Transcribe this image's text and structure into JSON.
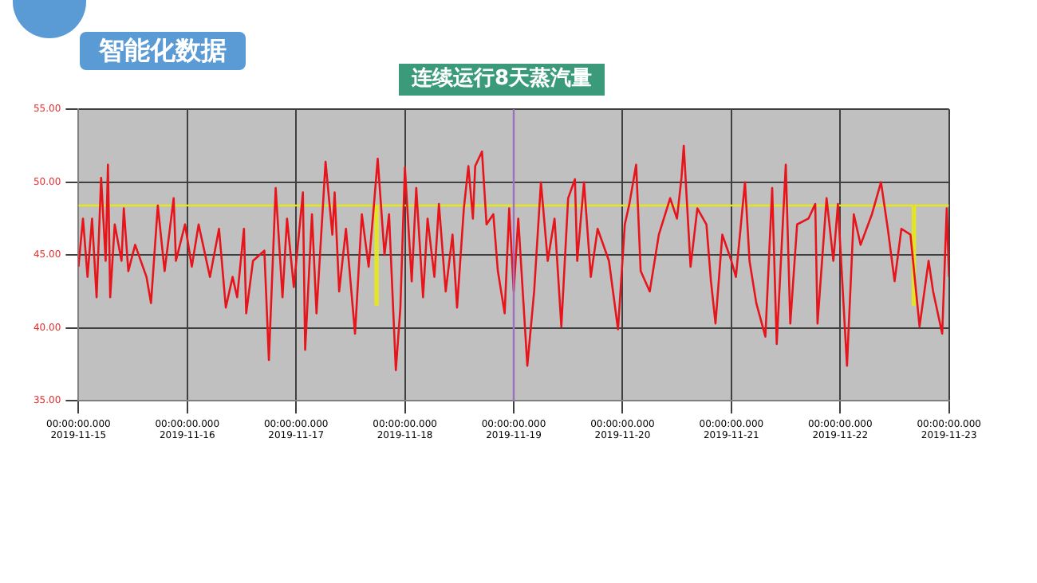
{
  "chart_data": {
    "type": "line",
    "title": "智能化数据",
    "subtitle": "连续运行8天蒸汽量",
    "series": [
      {
        "color": "#e8141b",
        "x": [
          "2019-11-15T00:00",
          "2019-11-15T01:00",
          "2019-11-15T02:00",
          "2019-11-15T03:00",
          "2019-11-15T04:00",
          "2019-11-15T05:00",
          "2019-11-15T06:00",
          "2019-11-15T06:30",
          "2019-11-15T07:00",
          "2019-11-15T08:00",
          "2019-11-15T09:30",
          "2019-11-15T10:00",
          "2019-11-15T11:00",
          "2019-11-15T12:30",
          "2019-11-15T15:00",
          "2019-11-15T16:00",
          "2019-11-15T17:30",
          "2019-11-15T19:00",
          "2019-11-15T21:00",
          "2019-11-15T21:30",
          "2019-11-15T23:30",
          "2019-11-16T01:00",
          "2019-11-16T02:30",
          "2019-11-16T05:00",
          "2019-11-16T07:00",
          "2019-11-16T08:30",
          "2019-11-16T10:00",
          "2019-11-16T11:00",
          "2019-11-16T12:30",
          "2019-11-16T13:00",
          "2019-11-16T14:30",
          "2019-11-16T17:00",
          "2019-11-16T18:00",
          "2019-11-16T19:30",
          "2019-11-16T21:00",
          "2019-11-16T22:00",
          "2019-11-16T23:30",
          "2019-11-17T01:30",
          "2019-11-17T02:00",
          "2019-11-17T03:30",
          "2019-11-17T04:30",
          "2019-11-17T06:30",
          "2019-11-17T08:00",
          "2019-11-17T08:30",
          "2019-11-17T09:30",
          "2019-11-17T11:00",
          "2019-11-17T13:00",
          "2019-11-17T14:30",
          "2019-11-17T16:00",
          "2019-11-17T17:00",
          "2019-11-17T18:00",
          "2019-11-17T19:30",
          "2019-11-17T20:30",
          "2019-11-17T22:00",
          "2019-11-17T23:00",
          "2019-11-18T00:00",
          "2019-11-18T01:30",
          "2019-11-18T02:30",
          "2019-11-18T04:00",
          "2019-11-18T05:00",
          "2019-11-18T06:30",
          "2019-11-18T07:30",
          "2019-11-18T09:00",
          "2019-11-18T10:30",
          "2019-11-18T11:30",
          "2019-11-18T13:00",
          "2019-11-18T14:00",
          "2019-11-18T15:00",
          "2019-11-18T15:30",
          "2019-11-18T17:00",
          "2019-11-18T18:00",
          "2019-11-18T19:30",
          "2019-11-18T20:30",
          "2019-11-18T22:00",
          "2019-11-18T23:00",
          "2019-11-19T00:00",
          "2019-11-19T01:00",
          "2019-11-19T03:00",
          "2019-11-19T04:30",
          "2019-11-19T06:00",
          "2019-11-19T07:30",
          "2019-11-19T09:00",
          "2019-11-19T10:30",
          "2019-11-19T12:00",
          "2019-11-19T13:30",
          "2019-11-19T14:00",
          "2019-11-19T15:30",
          "2019-11-19T17:00",
          "2019-11-19T18:30",
          "2019-11-19T21:00",
          "2019-11-19T23:00",
          "2019-11-20T00:30",
          "2019-11-20T01:30",
          "2019-11-20T03:00",
          "2019-11-20T04:00",
          "2019-11-20T06:00",
          "2019-11-20T08:00",
          "2019-11-20T10:30",
          "2019-11-20T12:00",
          "2019-11-20T13:00",
          "2019-11-20T13:30",
          "2019-11-20T15:00",
          "2019-11-20T16:30",
          "2019-11-20T18:30",
          "2019-11-20T19:30",
          "2019-11-20T20:30",
          "2019-11-20T22:00",
          "2019-11-21T00:00",
          "2019-11-21T01:00",
          "2019-11-21T03:00",
          "2019-11-21T04:00",
          "2019-11-21T05:30",
          "2019-11-21T07:30",
          "2019-11-21T09:00",
          "2019-11-21T10:00",
          "2019-11-21T12:00",
          "2019-11-21T13:00",
          "2019-11-21T14:30",
          "2019-11-21T17:00",
          "2019-11-21T18:30",
          "2019-11-21T19:00",
          "2019-11-21T21:00",
          "2019-11-21T22:30",
          "2019-11-21T23:30",
          "2019-11-22T01:30",
          "2019-11-22T03:00",
          "2019-11-22T04:30",
          "2019-11-22T07:00",
          "2019-11-22T09:00",
          "2019-11-22T10:30",
          "2019-11-22T12:00",
          "2019-11-22T13:30",
          "2019-11-22T15:30",
          "2019-11-22T17:30",
          "2019-11-22T19:30",
          "2019-11-22T20:30",
          "2019-11-22T22:30",
          "2019-11-22T23:30",
          "2019-11-23T00:00"
        ],
        "values": [
          44.2,
          47.5,
          43.5,
          47.5,
          42.1,
          50.3,
          44.6,
          51.2,
          42.1,
          47.1,
          44.6,
          48.2,
          43.9,
          45.7,
          43.5,
          41.7,
          48.4,
          43.9,
          48.9,
          44.6,
          47.1,
          44.2,
          47.1,
          43.5,
          46.8,
          41.4,
          43.5,
          42.1,
          46.8,
          41.0,
          44.6,
          45.3,
          37.8,
          49.6,
          42.1,
          47.5,
          42.8,
          49.3,
          38.5,
          47.8,
          41.0,
          51.4,
          46.4,
          49.3,
          42.5,
          46.8,
          39.6,
          47.8,
          44.2,
          47.8,
          51.6,
          45.0,
          47.8,
          37.1,
          41.4,
          51.0,
          43.2,
          49.6,
          42.1,
          47.5,
          43.5,
          48.5,
          42.5,
          46.4,
          41.4,
          48.2,
          51.1,
          47.5,
          51.1,
          52.1,
          47.1,
          47.8,
          43.9,
          41.0,
          48.2,
          42.5,
          47.5,
          37.4,
          42.5,
          50.0,
          44.6,
          47.5,
          40.1,
          48.9,
          50.2,
          44.6,
          50.0,
          43.5,
          46.8,
          44.6,
          39.9,
          47.1,
          48.5,
          51.2,
          43.9,
          42.5,
          46.4,
          48.9,
          47.5,
          50.3,
          52.5,
          44.2,
          48.2,
          47.1,
          43.2,
          40.3,
          46.4,
          44.6,
          43.5,
          50.0,
          44.6,
          41.7,
          39.4,
          49.6,
          38.9,
          51.2,
          40.3,
          47.1,
          47.5,
          48.5,
          40.3,
          48.9,
          44.6,
          48.5,
          37.4,
          47.8,
          45.7,
          47.8,
          50.0,
          46.8,
          43.2,
          46.8,
          46.4,
          40.1,
          44.6,
          42.5,
          39.6,
          48.2,
          43.5
        ]
      },
      {
        "type": "step",
        "color": "#e6e61e",
        "x": [
          "2019-11-15T00:00",
          "2019-11-17T17:30",
          "2019-11-17T18:00",
          "2019-11-22T16:00",
          "2019-11-22T16:30",
          "2019-11-23T00:00"
        ],
        "values": [
          48.4,
          41.6,
          48.4,
          41.6,
          48.4,
          48.4
        ]
      }
    ],
    "xlim": [
      "2019-11-15",
      "2019-11-23"
    ],
    "xticks": [
      {
        "value": "2019-11-15",
        "label": "00:00:00.000 2019-11-15"
      },
      {
        "value": "2019-11-16",
        "label": "00:00:00.000 2019-11-16"
      },
      {
        "value": "2019-11-17",
        "label": "00:00:00.000 2019-11-17"
      },
      {
        "value": "2019-11-18",
        "label": "00:00:00.000 2019-11-18"
      },
      {
        "value": "2019-11-19",
        "label": "00:00:00.000 2019-11-19"
      },
      {
        "value": "2019-11-20",
        "label": "00:00:00.000 2019-11-20"
      },
      {
        "value": "2019-11-21",
        "label": "00:00:00.000 2019-11-21"
      },
      {
        "value": "2019-11-22",
        "label": "00:00:00.000 2019-11-22"
      },
      {
        "value": "2019-11-23",
        "label": "00:00:00.000 2019-11-23"
      }
    ],
    "ylim": [
      35,
      55
    ],
    "yticks": [
      {
        "value": 35,
        "label": "35.00"
      },
      {
        "value": 40,
        "label": "40.00"
      },
      {
        "value": 45,
        "label": "45.00"
      },
      {
        "value": 50,
        "label": "50.00"
      },
      {
        "value": 55,
        "label": "55.00"
      }
    ],
    "tick_labels": "xy",
    "ref_lines": [
      {
        "axis": "x",
        "value": "2019-11-19T00:00",
        "color": "#a070c0"
      }
    ],
    "grid": true,
    "legend": false,
    "marker": "none",
    "line_style": "solid"
  }
}
